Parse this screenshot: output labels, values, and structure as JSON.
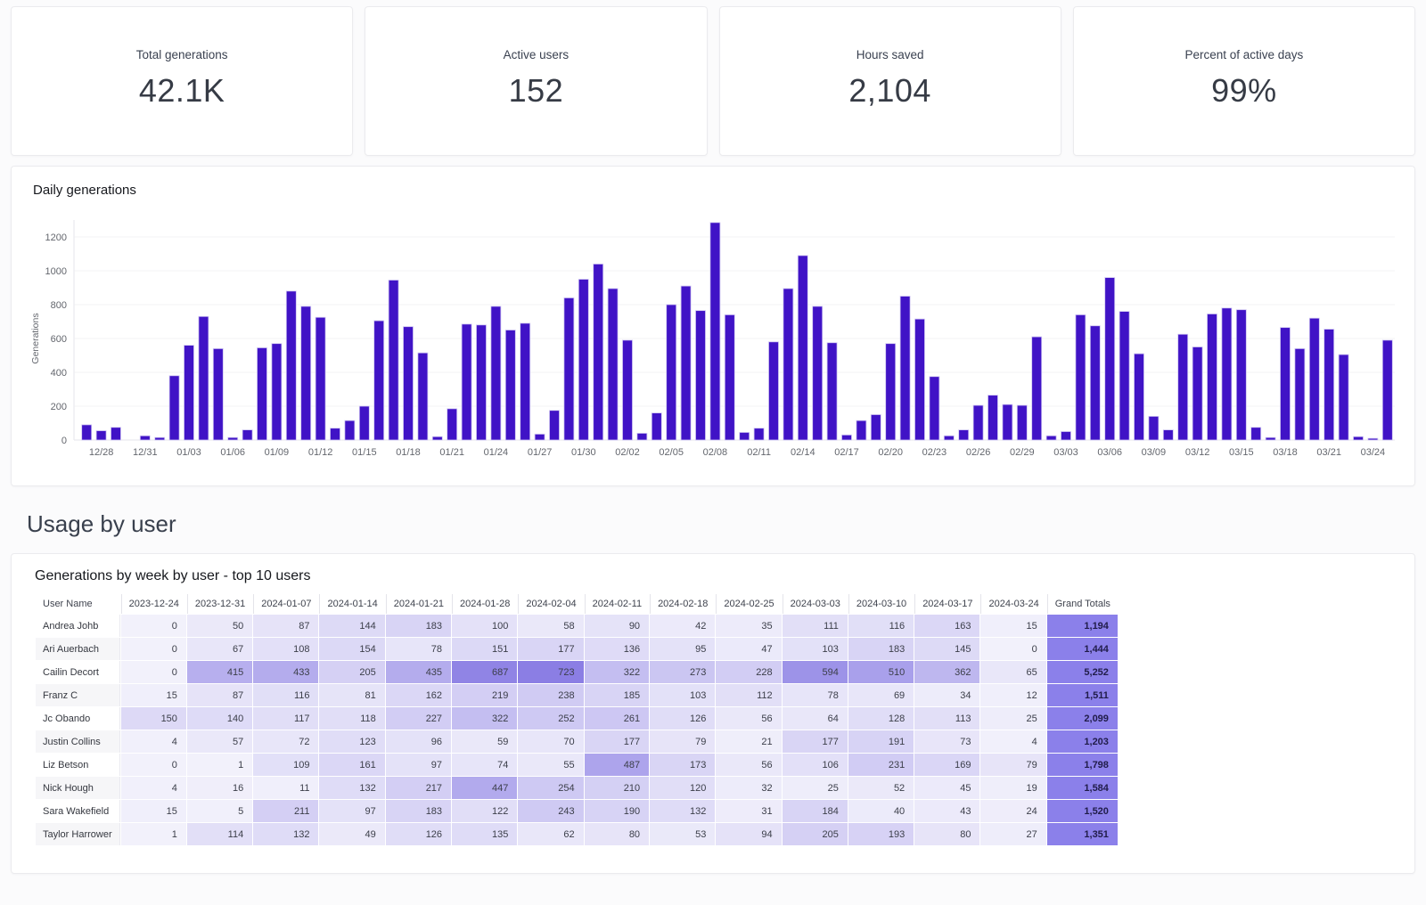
{
  "kpis": [
    {
      "label": "Total generations",
      "value": "42.1K"
    },
    {
      "label": "Active users",
      "value": "152"
    },
    {
      "label": "Hours saved",
      "value": "2,104"
    },
    {
      "label": "Percent of active days",
      "value": "99%"
    }
  ],
  "usage": {
    "heading": "Usage by user"
  },
  "chart_data": [
    {
      "type": "bar",
      "title": "Daily generations",
      "ylabel": "Generations",
      "xlabel": "",
      "ylim": [
        0,
        1300
      ],
      "yticks": [
        0,
        200,
        400,
        600,
        800,
        1000,
        1200
      ],
      "grid": "horizontal",
      "legend": "none",
      "label_every": 3,
      "label_start_index": 1,
      "x": [
        "12/27",
        "12/28",
        "12/29",
        "12/30",
        "12/31",
        "01/01",
        "01/02",
        "01/03",
        "01/04",
        "01/05",
        "01/06",
        "01/07",
        "01/08",
        "01/09",
        "01/10",
        "01/11",
        "01/12",
        "01/13",
        "01/14",
        "01/15",
        "01/16",
        "01/17",
        "01/18",
        "01/19",
        "01/20",
        "01/21",
        "01/22",
        "01/23",
        "01/24",
        "01/25",
        "01/26",
        "01/27",
        "01/28",
        "01/29",
        "01/30",
        "01/31",
        "02/01",
        "02/02",
        "02/03",
        "02/04",
        "02/05",
        "02/06",
        "02/07",
        "02/08",
        "02/09",
        "02/10",
        "02/11",
        "02/12",
        "02/13",
        "02/14",
        "02/15",
        "02/16",
        "02/17",
        "02/18",
        "02/19",
        "02/20",
        "02/21",
        "02/22",
        "02/23",
        "02/24",
        "02/25",
        "02/26",
        "02/27",
        "02/28",
        "02/29",
        "03/01",
        "03/02",
        "03/03",
        "03/04",
        "03/05",
        "03/06",
        "03/07",
        "03/08",
        "03/09",
        "03/10",
        "03/11",
        "03/12",
        "03/13",
        "03/14",
        "03/15",
        "03/16",
        "03/17",
        "03/18",
        "03/19",
        "03/20",
        "03/21",
        "03/22",
        "03/23",
        "03/24",
        "03/25"
      ],
      "values": [
        90,
        55,
        75,
        0,
        25,
        15,
        380,
        560,
        730,
        540,
        15,
        60,
        545,
        570,
        880,
        790,
        725,
        70,
        115,
        200,
        705,
        945,
        670,
        515,
        20,
        185,
        685,
        680,
        790,
        650,
        690,
        35,
        175,
        840,
        950,
        1040,
        895,
        590,
        40,
        160,
        800,
        910,
        765,
        1285,
        740,
        45,
        70,
        580,
        895,
        1090,
        790,
        575,
        30,
        115,
        150,
        570,
        850,
        715,
        375,
        25,
        60,
        205,
        265,
        210,
        205,
        610,
        25,
        50,
        740,
        675,
        960,
        760,
        510,
        140,
        60,
        625,
        550,
        745,
        780,
        770,
        75,
        15,
        665,
        540,
        720,
        655,
        505,
        20,
        10,
        590
      ]
    },
    {
      "type": "heatmap",
      "title": "Generations by week by user - top 10 users",
      "name_header": "User Name",
      "total_header": "Grand Totals",
      "columns": [
        "2023-12-24",
        "2023-12-31",
        "2024-01-07",
        "2024-01-14",
        "2024-01-21",
        "2024-01-28",
        "2024-02-04",
        "2024-02-11",
        "2024-02-18",
        "2024-02-25",
        "2024-03-03",
        "2024-03-10",
        "2024-03-17",
        "2024-03-24"
      ],
      "max": 723,
      "rows": [
        {
          "name": "Andrea Johb",
          "values": [
            0,
            50,
            87,
            144,
            183,
            100,
            58,
            90,
            42,
            35,
            111,
            116,
            163,
            15
          ],
          "total": "1,194"
        },
        {
          "name": "Ari Auerbach",
          "values": [
            0,
            67,
            108,
            154,
            78,
            151,
            177,
            136,
            95,
            47,
            103,
            183,
            145,
            0
          ],
          "total": "1,444"
        },
        {
          "name": "Cailin Decort",
          "values": [
            0,
            415,
            433,
            205,
            435,
            687,
            723,
            322,
            273,
            228,
            594,
            510,
            362,
            65
          ],
          "total": "5,252"
        },
        {
          "name": "Franz C",
          "values": [
            15,
            87,
            116,
            81,
            162,
            219,
            238,
            185,
            103,
            112,
            78,
            69,
            34,
            12
          ],
          "total": "1,511"
        },
        {
          "name": "Jc Obando",
          "values": [
            150,
            140,
            117,
            118,
            227,
            322,
            252,
            261,
            126,
            56,
            64,
            128,
            113,
            25
          ],
          "total": "2,099"
        },
        {
          "name": "Justin Collins",
          "values": [
            4,
            57,
            72,
            123,
            96,
            59,
            70,
            177,
            79,
            21,
            177,
            191,
            73,
            4
          ],
          "total": "1,203"
        },
        {
          "name": "Liz Betson",
          "values": [
            0,
            1,
            109,
            161,
            97,
            74,
            55,
            487,
            173,
            56,
            106,
            231,
            169,
            79
          ],
          "total": "1,798"
        },
        {
          "name": "Nick Hough",
          "values": [
            4,
            16,
            11,
            132,
            217,
            447,
            254,
            210,
            120,
            32,
            25,
            52,
            45,
            19
          ],
          "total": "1,584"
        },
        {
          "name": "Sara Wakefield",
          "values": [
            15,
            5,
            211,
            97,
            183,
            122,
            243,
            190,
            132,
            31,
            184,
            40,
            43,
            24
          ],
          "total": "1,520"
        },
        {
          "name": "Taylor Harrower",
          "values": [
            1,
            114,
            132,
            49,
            126,
            135,
            62,
            80,
            53,
            94,
            205,
            193,
            80,
            27
          ],
          "total": "1,351"
        }
      ]
    }
  ],
  "colors": {
    "bar_fill": "#4013c6",
    "bar_stroke": "#cfc6f2",
    "grid": "#f3f3f6",
    "axis": "#e6e6eb",
    "tick_text": "#63666d",
    "heat_low": [
      242,
      241,
      251
    ],
    "heat_high": [
      139,
      126,
      228
    ],
    "total_bg": "#8b80ea",
    "total_text": "#201c49",
    "stripe_a": "#ffffff",
    "stripe_b": "#f6f6f8"
  }
}
